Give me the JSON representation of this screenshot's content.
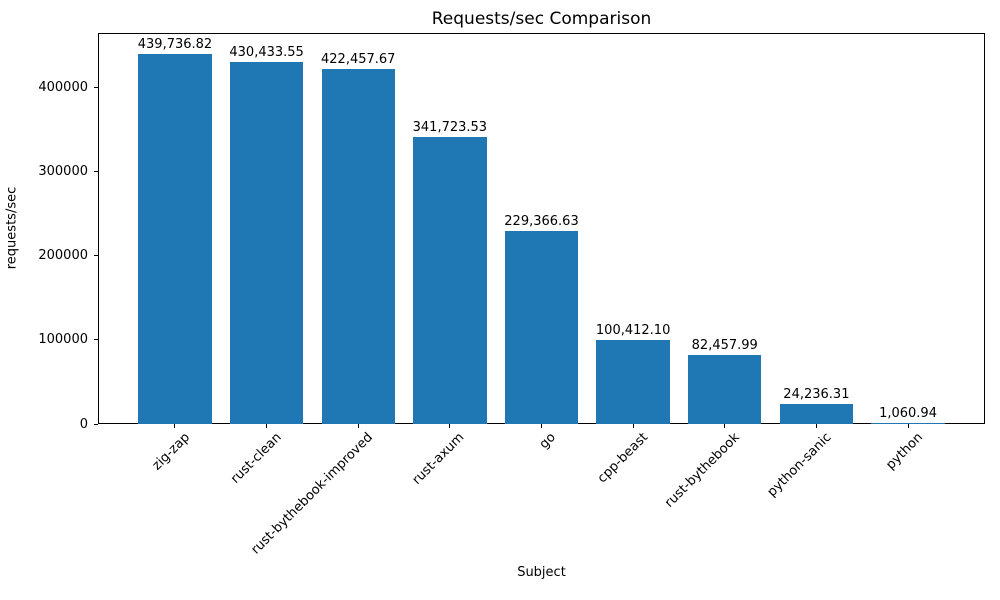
{
  "chart_data": {
    "type": "bar",
    "title": "Requests/sec Comparison",
    "xlabel": "Subject",
    "ylabel": "requests/sec",
    "categories": [
      "zig-zap",
      "rust-clean",
      "rust-bythebook-improved",
      "rust-axum",
      "go",
      "cpp-beast",
      "rust-bythebook",
      "python-sanic",
      "python"
    ],
    "values": [
      439736.82,
      430433.55,
      422457.67,
      341723.53,
      229366.63,
      100412.1,
      82457.99,
      24236.31,
      1060.94
    ],
    "value_labels": [
      "439,736.82",
      "430,433.55",
      "422,457.67",
      "341,723.53",
      "229,366.63",
      "100,412.10",
      "82,457.99",
      "24,236.31",
      "1,060.94"
    ],
    "yticks": [
      0,
      100000,
      200000,
      300000,
      400000
    ],
    "ytick_labels": [
      "0",
      "100000",
      "200000",
      "300000",
      "400000"
    ],
    "ylim": [
      0,
      465000
    ],
    "bar_color": "#1f77b4",
    "bar_width_fraction": 0.8,
    "x_margin_units": 0.44,
    "grid": false,
    "legend": null,
    "xtick_rotation_deg": 45
  }
}
